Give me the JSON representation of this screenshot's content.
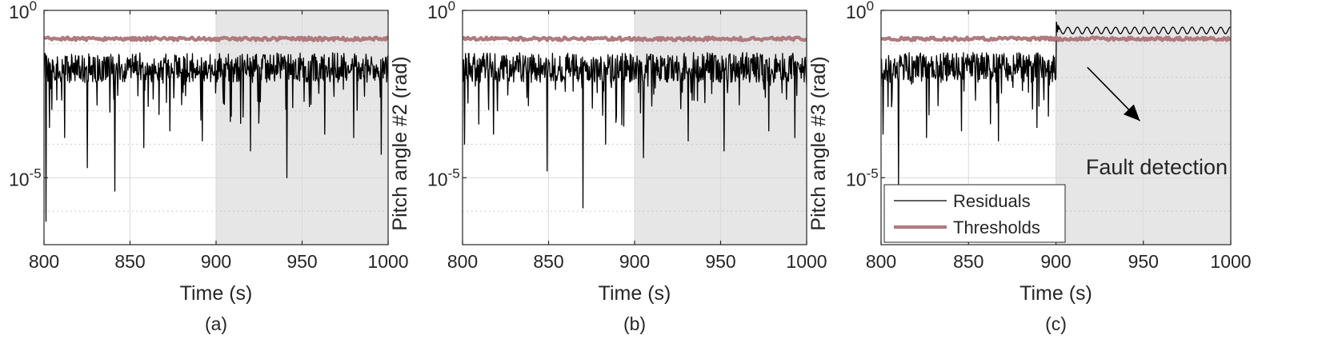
{
  "chart_data": [
    {
      "type": "line",
      "panel_label": "(a)",
      "xlabel": "Time (s)",
      "ylabel": "",
      "yscale": "log",
      "xlim": [
        800,
        1000
      ],
      "ylim": [
        1e-07,
        1
      ],
      "x_ticks": [
        800,
        850,
        900,
        950,
        1000
      ],
      "y_ticks": [
        {
          "value": 1,
          "base": "10",
          "exp": "0"
        },
        {
          "value": 1e-05,
          "base": "10",
          "exp": "-5"
        }
      ],
      "shaded_x_range": [
        900,
        1000
      ],
      "grid": true,
      "series": [
        {
          "name": "Residuals",
          "x_range": [
            800,
            1000
          ],
          "level_log10": -1.8,
          "fault_after": null,
          "fault_level_log10": null,
          "dips": [
            [
              801,
              -6.3
            ],
            [
              803,
              -3.5
            ],
            [
              812,
              -3.8
            ],
            [
              825,
              -4.7
            ],
            [
              841,
              -5.4
            ],
            [
              858,
              -4.1
            ],
            [
              873,
              -3.6
            ],
            [
              892,
              -3.9
            ],
            [
              920,
              -4.2
            ],
            [
              941,
              -5.0
            ],
            [
              963,
              -3.7
            ],
            [
              980,
              -3.8
            ],
            [
              996,
              -4.3
            ]
          ]
        },
        {
          "name": "Thresholds",
          "x_range": [
            800,
            1000
          ],
          "level_log10": -0.85
        }
      ]
    },
    {
      "type": "line",
      "panel_label": "(b)",
      "xlabel": "Time (s)",
      "ylabel": "Pitch angle #2 (rad)",
      "yscale": "log",
      "xlim": [
        800,
        1000
      ],
      "ylim": [
        1e-07,
        1
      ],
      "x_ticks": [
        800,
        850,
        900,
        950,
        1000
      ],
      "y_ticks": [
        {
          "value": 1,
          "base": "10",
          "exp": "0"
        },
        {
          "value": 1e-05,
          "base": "10",
          "exp": "-5"
        }
      ],
      "shaded_x_range": [
        900,
        1000
      ],
      "grid": true,
      "series": [
        {
          "name": "Residuals",
          "x_range": [
            800,
            1000
          ],
          "level_log10": -1.8,
          "fault_after": null,
          "fault_level_log10": null,
          "dips": [
            [
              801,
              -4.0
            ],
            [
              818,
              -3.7
            ],
            [
              849,
              -4.8
            ],
            [
              870,
              -5.9
            ],
            [
              883,
              -4.0
            ],
            [
              905,
              -4.4
            ],
            [
              931,
              -3.9
            ],
            [
              952,
              -4.2
            ],
            [
              978,
              -3.6
            ],
            [
              993,
              -3.8
            ]
          ]
        },
        {
          "name": "Thresholds",
          "x_range": [
            800,
            1000
          ],
          "level_log10": -0.85
        }
      ]
    },
    {
      "type": "line",
      "panel_label": "(c)",
      "xlabel": "Time (s)",
      "ylabel": "Pitch angle #3 (rad)",
      "yscale": "log",
      "xlim": [
        800,
        1000
      ],
      "ylim": [
        1e-07,
        1
      ],
      "x_ticks": [
        800,
        850,
        900,
        950,
        1000
      ],
      "y_ticks": [
        {
          "value": 1,
          "base": "10",
          "exp": "0"
        },
        {
          "value": 1e-05,
          "base": "10",
          "exp": "-5"
        }
      ],
      "shaded_x_range": [
        900,
        1000
      ],
      "grid": true,
      "legend": {
        "position": "bottom-left",
        "entries": [
          "Residuals",
          "Thresholds"
        ]
      },
      "annotation": {
        "text": "Fault detection",
        "arrow_from": [
          918,
          -1.7
        ],
        "arrow_to": [
          948,
          -3.3
        ]
      },
      "series": [
        {
          "name": "Residuals",
          "x_range": [
            800,
            1000
          ],
          "level_log10": -1.8,
          "fault_after": 900,
          "fault_level_log10": -0.6,
          "dips": [
            [
              801,
              -3.7
            ],
            [
              810,
              -5.2
            ],
            [
              826,
              -3.8
            ],
            [
              846,
              -3.6
            ],
            [
              867,
              -3.9
            ],
            [
              889,
              -3.5
            ]
          ]
        },
        {
          "name": "Thresholds",
          "x_range": [
            800,
            1000
          ],
          "level_log10": -0.85
        }
      ]
    }
  ],
  "colors": {
    "residuals": "#000000",
    "thresholds": "#b07a7e",
    "shade": "#e6e6e6",
    "grid": "#d9d9d9",
    "axis": "#262626"
  }
}
